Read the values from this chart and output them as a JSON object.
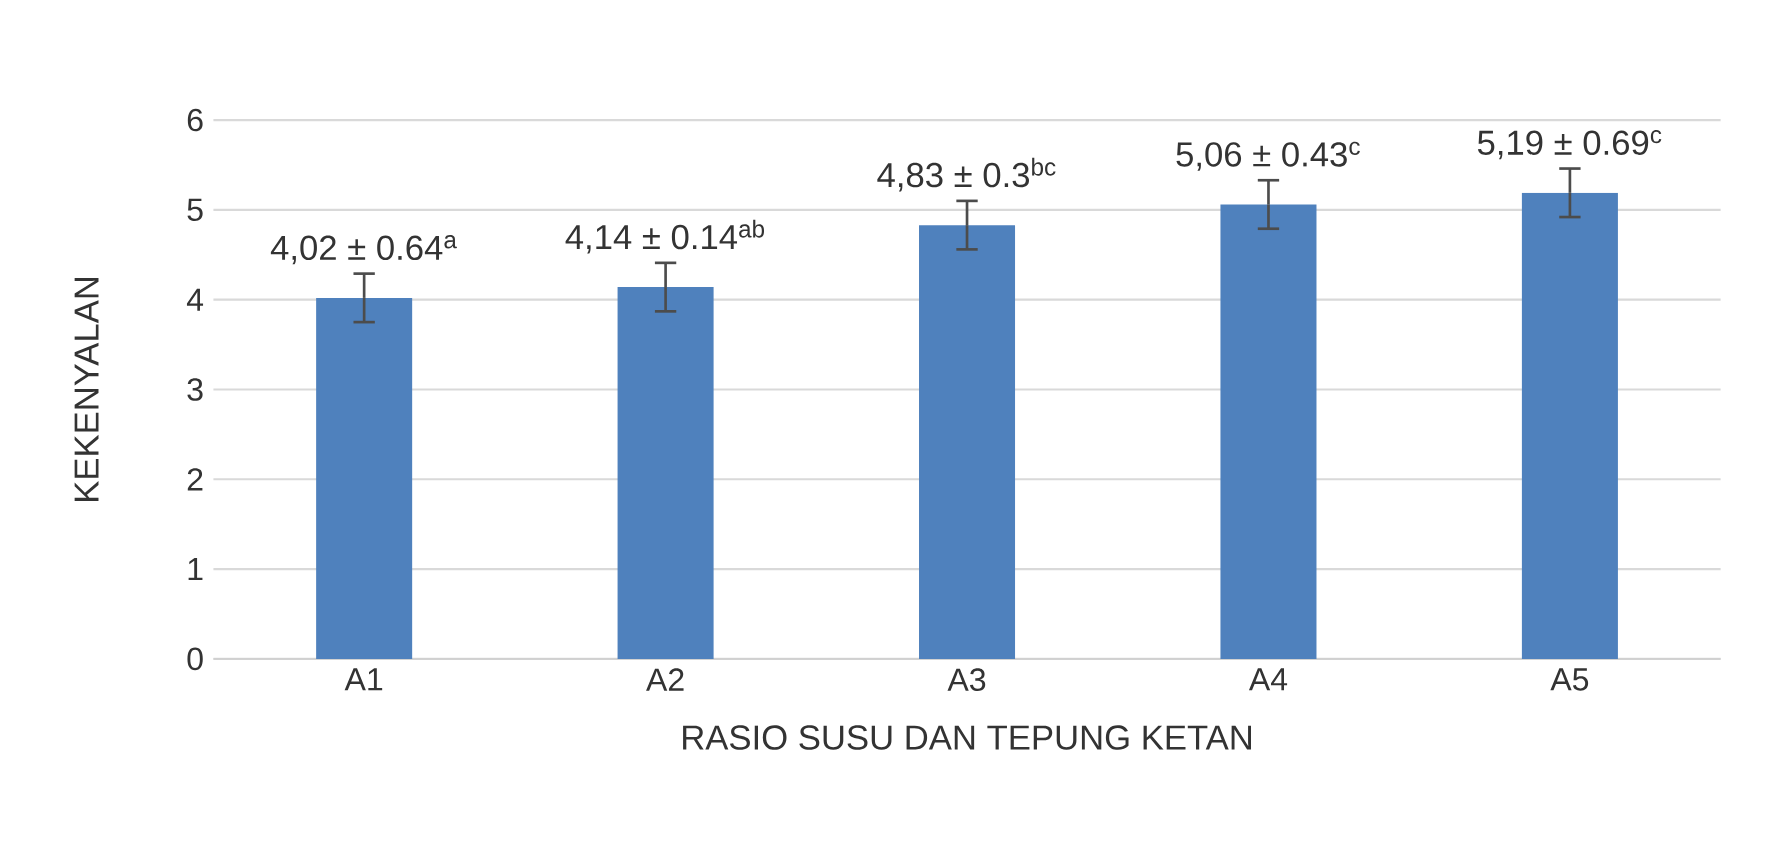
{
  "chart_data": {
    "type": "bar",
    "xlabel": "RASIO SUSU DAN TEPUNG KETAN",
    "ylabel": "KEKENYALAN",
    "categories": [
      "A1",
      "A2",
      "A3",
      "A4",
      "A5"
    ],
    "values": [
      4.02,
      4.14,
      4.83,
      5.06,
      5.19
    ],
    "errors": [
      0.27,
      0.27,
      0.27,
      0.27,
      0.27
    ],
    "value_labels": [
      "4,02 ± 0.64$^{a}$",
      "4,14  ± 0.14$^{ab}$",
      "4,83 ± 0.3$^{bc}$",
      "5,06  ± 0.43$^{c}$",
      "5,19  ± 0.69$^{c}$"
    ],
    "color": "#4f81bd",
    "ylim": [
      0,
      6
    ],
    "yticks": [
      0,
      1,
      2,
      3,
      4,
      5,
      6
    ],
    "grid": "y"
  }
}
